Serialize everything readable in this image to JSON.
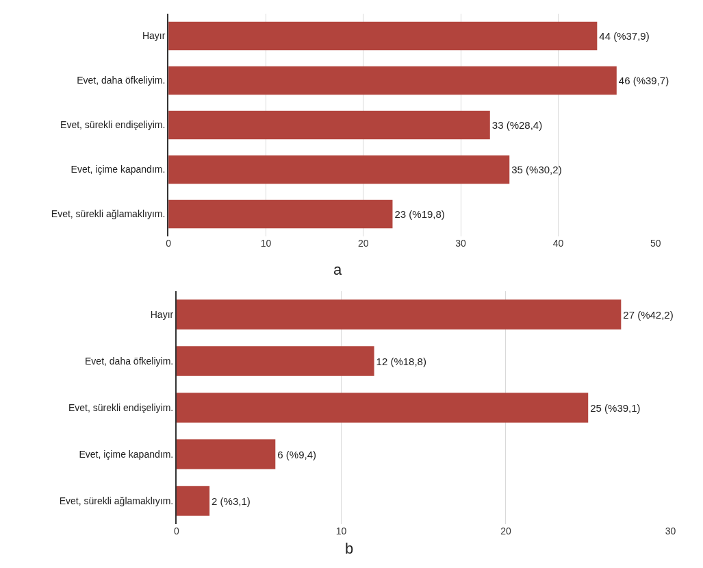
{
  "chart_data": [
    {
      "type": "bar",
      "orientation": "horizontal",
      "categories": [
        "Hayır",
        "Evet, daha öfkeliyim.",
        "Evet, sürekli endişeliyim.",
        "Evet, içime kapandım.",
        "Evet, sürekli ağlamaklıyım."
      ],
      "values": [
        44,
        46,
        33,
        35,
        23
      ],
      "value_labels": [
        "44 (%37,9)",
        "46 (%39,7)",
        "33 (%28,4)",
        "35 (%30,2)",
        "23 (%19,8)"
      ],
      "color": "#b2443d",
      "xlim": [
        0,
        50
      ],
      "xticks": [
        0,
        10,
        20,
        30,
        40,
        50
      ],
      "grid": "x",
      "annotations": [
        "a"
      ]
    },
    {
      "type": "bar",
      "orientation": "horizontal",
      "categories": [
        "Hayır",
        "Evet, daha öfkeliyim.",
        "Evet, sürekli endişeliyim.",
        "Evet, içime kapandım.",
        "Evet, sürekli ağlamaklıyım."
      ],
      "values": [
        27,
        12,
        25,
        6,
        2
      ],
      "value_labels": [
        "27 (%42,2)",
        "12 (%18,8)",
        "25 (%39,1)",
        "6 (%9,4)",
        "2 (%3,1)"
      ],
      "color": "#b2443d",
      "xlim": [
        0,
        30
      ],
      "xticks": [
        0,
        10,
        20,
        30
      ],
      "grid": "x",
      "annotations": [
        "b"
      ]
    }
  ]
}
